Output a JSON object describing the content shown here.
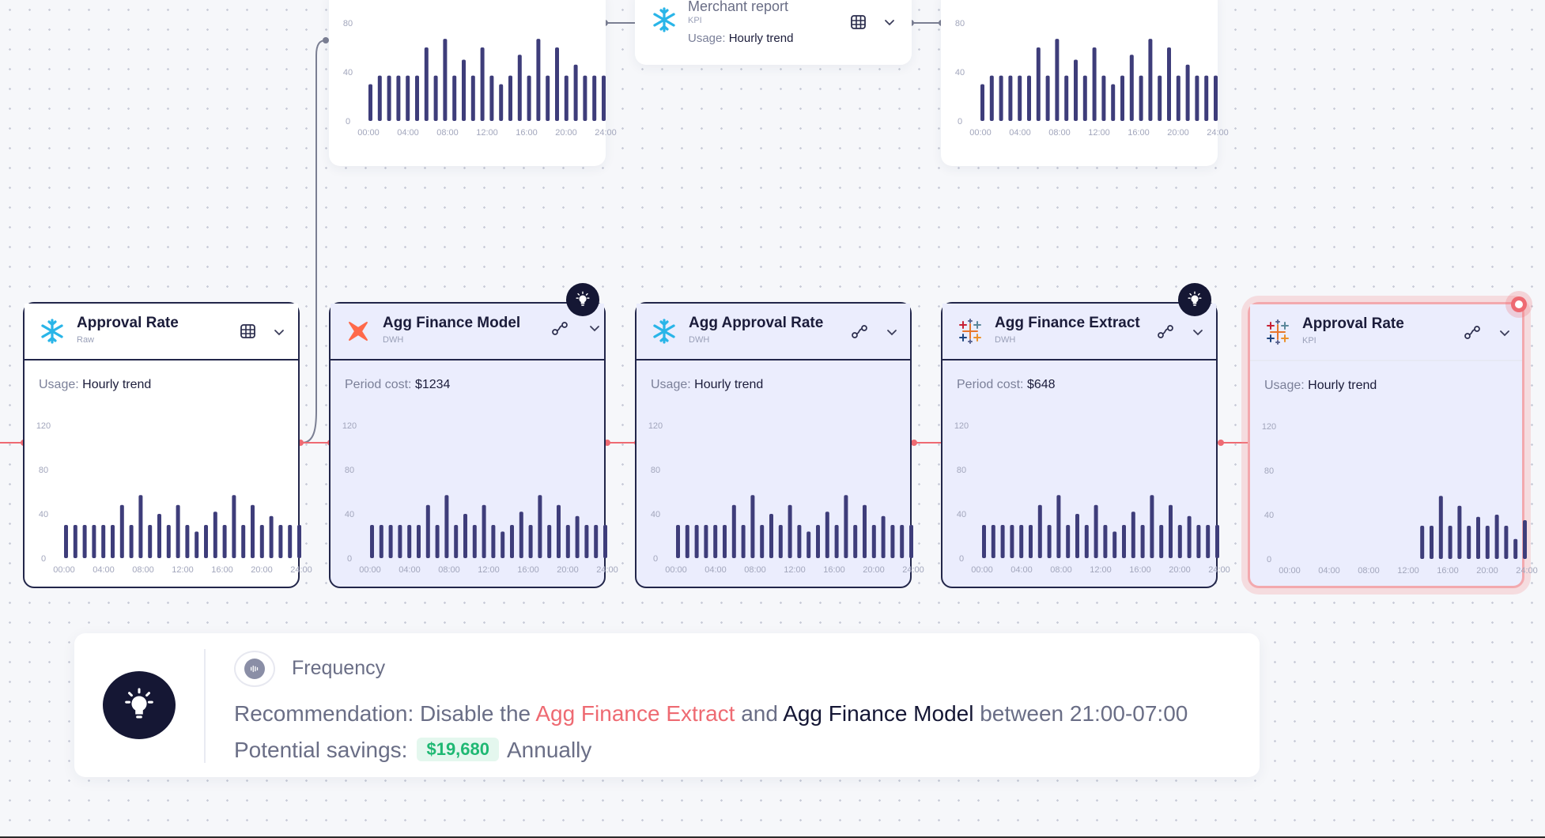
{
  "top_cards": [
    {
      "chart_ref": 5
    },
    {
      "title": "Merchant report",
      "subtitle": "KPI",
      "usage_label": "Usage:",
      "usage_value": "Hourly trend",
      "header_icon": "table-icon"
    },
    {
      "chart_ref": 6
    }
  ],
  "cards": [
    {
      "title": "Approval Rate",
      "subtitle": "Raw",
      "logo": "snowflake-icon",
      "header_icon": "table-icon",
      "label": "Usage:",
      "value": "Hourly trend"
    },
    {
      "title": "Agg Finance Model",
      "subtitle": "DWH",
      "logo": "dbt-icon",
      "header_icon": "lineage-icon",
      "label": "Period cost:",
      "value": "$1234"
    },
    {
      "title": "Agg Approval Rate",
      "subtitle": "DWH",
      "logo": "snowflake-icon",
      "header_icon": "lineage-icon",
      "label": "Usage:",
      "value": "Hourly trend"
    },
    {
      "title": "Agg Finance Extract",
      "subtitle": "DWH",
      "logo": "tableau-icon",
      "header_icon": "lineage-icon",
      "label": "Period cost:",
      "value": "$648"
    },
    {
      "title": "Approval Rate",
      "subtitle": "KPI",
      "logo": "tableau-icon",
      "header_icon": "lineage-icon",
      "label": "Usage:",
      "value": "Hourly trend"
    }
  ],
  "recommendation": {
    "category": "Frequency",
    "prefix": "Recommendation: Disable the",
    "target1": "Agg Finance Extract",
    "and": "and",
    "target2": "Agg Finance Model",
    "suffix": "between 21:00-07:00",
    "savings_label": "Potential savings:",
    "savings_value": "$19,680",
    "savings_period": "Annually"
  },
  "colors": {
    "bar": "#3e3d7a",
    "accent_red": "#ee6a72",
    "savings_green": "#1fb873",
    "dark": "#151734"
  },
  "chart_data": [
    {
      "type": "bar",
      "yticks": [
        0,
        40,
        80,
        120
      ],
      "ylim": [
        0,
        120
      ],
      "xticks": [
        "00:00",
        "04:00",
        "08:00",
        "12:00",
        "16:00",
        "20:00",
        "24:00"
      ],
      "values": [
        30,
        30,
        30,
        30,
        30,
        30,
        48,
        30,
        57,
        30,
        40,
        30,
        48,
        30,
        24,
        30,
        42,
        30,
        57,
        30,
        48,
        30,
        38,
        30,
        30,
        30
      ]
    },
    {
      "type": "bar",
      "yticks": [
        0,
        40,
        80,
        120
      ],
      "ylim": [
        0,
        120
      ],
      "xticks": [
        "00:00",
        "04:00",
        "08:00",
        "12:00",
        "16:00",
        "20:00",
        "24:00"
      ],
      "values": [
        30,
        30,
        30,
        30,
        30,
        30,
        48,
        30,
        57,
        30,
        40,
        30,
        48,
        30,
        24,
        30,
        42,
        30,
        57,
        30,
        48,
        30,
        38,
        30,
        30,
        30
      ]
    },
    {
      "type": "bar",
      "yticks": [
        0,
        40,
        80,
        120
      ],
      "ylim": [
        0,
        120
      ],
      "xticks": [
        "00:00",
        "04:00",
        "08:00",
        "12:00",
        "16:00",
        "20:00",
        "24:00"
      ],
      "values": [
        30,
        30,
        30,
        30,
        30,
        30,
        48,
        30,
        57,
        30,
        40,
        30,
        48,
        30,
        24,
        30,
        42,
        30,
        57,
        30,
        48,
        30,
        38,
        30,
        30,
        30
      ]
    },
    {
      "type": "bar",
      "yticks": [
        0,
        40,
        80,
        120
      ],
      "ylim": [
        0,
        120
      ],
      "xticks": [
        "00:00",
        "04:00",
        "08:00",
        "12:00",
        "16:00",
        "20:00",
        "24:00"
      ],
      "values": [
        30,
        30,
        30,
        30,
        30,
        30,
        48,
        30,
        57,
        30,
        40,
        30,
        48,
        30,
        24,
        30,
        42,
        30,
        57,
        30,
        48,
        30,
        38,
        30,
        30,
        30
      ]
    },
    {
      "type": "bar",
      "yticks": [
        0,
        40,
        80,
        120
      ],
      "ylim": [
        0,
        120
      ],
      "xticks": [
        "00:00",
        "04:00",
        "08:00",
        "12:00",
        "16:00",
        "20:00",
        "24:00"
      ],
      "values": [
        null,
        null,
        null,
        null,
        null,
        null,
        null,
        null,
        null,
        null,
        null,
        null,
        null,
        null,
        30,
        30,
        57,
        30,
        48,
        30,
        38,
        30,
        40,
        30,
        18,
        35
      ]
    },
    {
      "type": "bar",
      "yticks": [
        0,
        40,
        80
      ],
      "ylim": [
        0,
        80
      ],
      "xticks": [
        "00:00",
        "04:00",
        "08:00",
        "12:00",
        "16:00",
        "20:00",
        "24:00"
      ],
      "values": [
        30,
        37,
        37,
        37,
        37,
        37,
        60,
        37,
        67,
        37,
        50,
        37,
        60,
        37,
        30,
        37,
        54,
        37,
        67,
        37,
        60,
        37,
        46,
        37,
        37,
        37
      ]
    },
    {
      "type": "bar",
      "yticks": [
        0,
        40,
        80
      ],
      "ylim": [
        0,
        80
      ],
      "xticks": [
        "00:00",
        "04:00",
        "08:00",
        "12:00",
        "16:00",
        "20:00",
        "24:00"
      ],
      "values": [
        30,
        37,
        37,
        37,
        37,
        37,
        60,
        37,
        67,
        37,
        50,
        37,
        60,
        37,
        30,
        37,
        54,
        37,
        67,
        37,
        60,
        37,
        46,
        37,
        37,
        37
      ]
    }
  ]
}
